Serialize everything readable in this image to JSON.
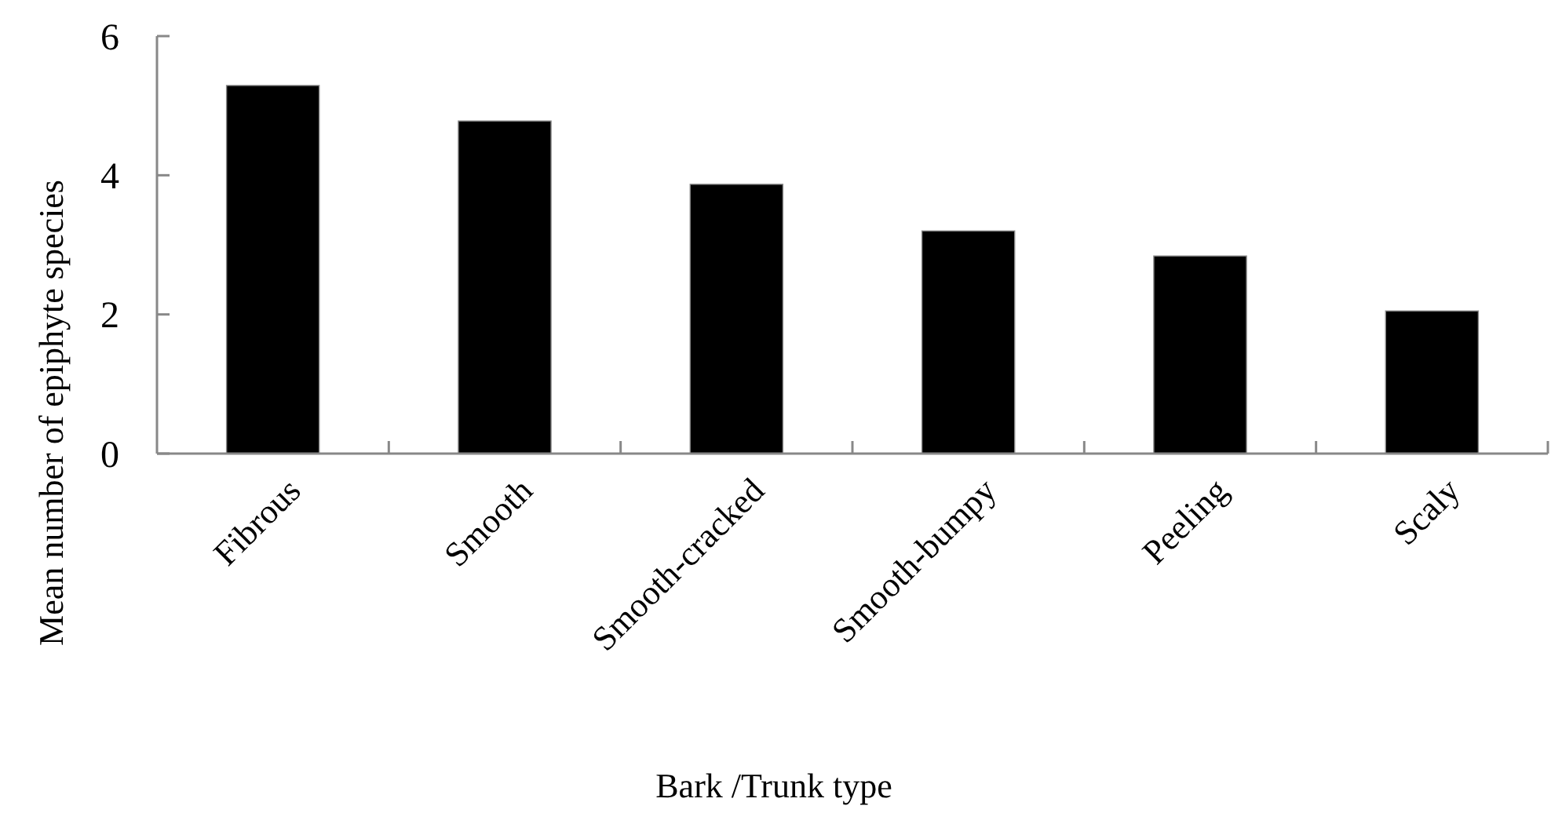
{
  "chart_data": {
    "type": "bar",
    "xlabel": "Bark /Trunk type",
    "ylabel": "Mean number of epiphyte species",
    "categories": [
      "Fibrous",
      "Smooth",
      "Smooth-cracked",
      "Smooth-bumpy",
      "Peeling",
      "Scaly"
    ],
    "values": [
      5.29,
      4.78,
      3.87,
      3.2,
      2.84,
      2.05
    ],
    "color": "#000000",
    "ylim": [
      0,
      6
    ],
    "yticks": [
      0,
      2,
      4,
      6
    ]
  }
}
